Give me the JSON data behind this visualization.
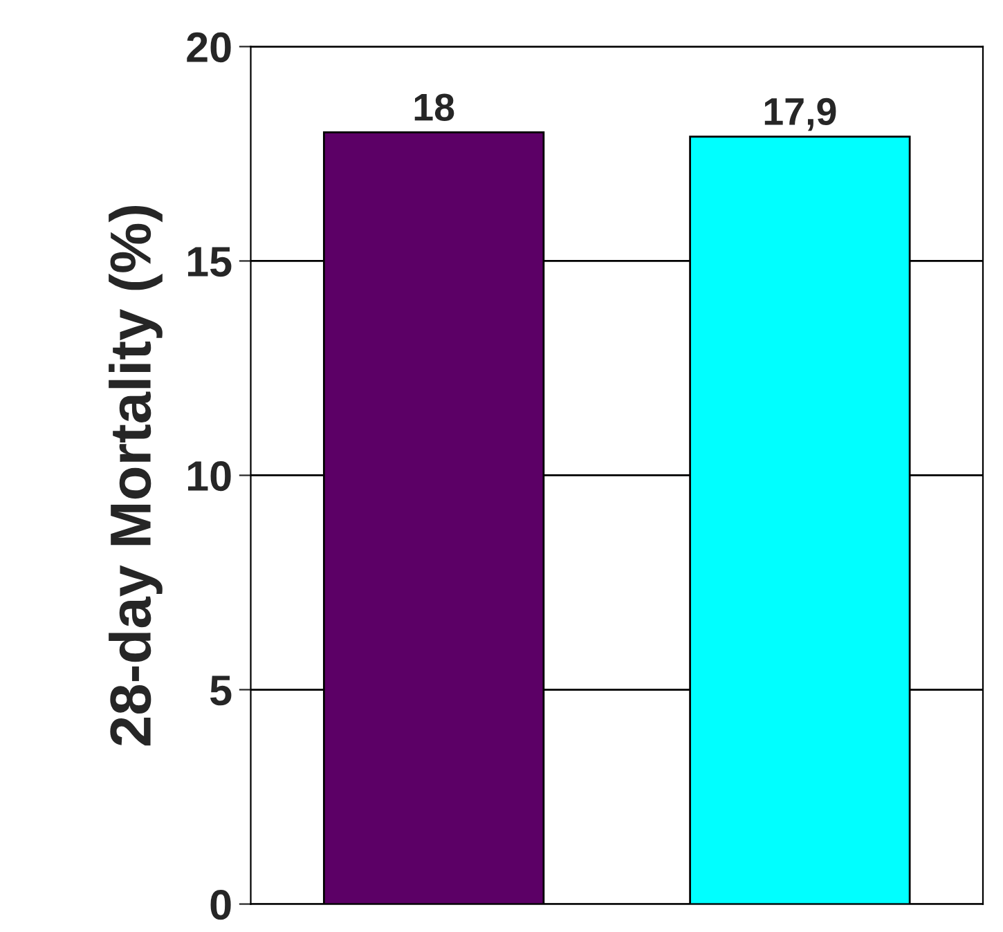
{
  "chart_data": {
    "type": "bar",
    "ylabel": "28-day Mortality (%)",
    "categories": [
      null,
      null
    ],
    "values": [
      18,
      17.9
    ],
    "colors": [
      "#5c0066",
      "#00ffff"
    ],
    "value_labels": [
      "18",
      "17,9"
    ],
    "ylim": [
      0,
      20
    ],
    "yticks": [
      0,
      5,
      10,
      15,
      20
    ],
    "grid": "y"
  }
}
